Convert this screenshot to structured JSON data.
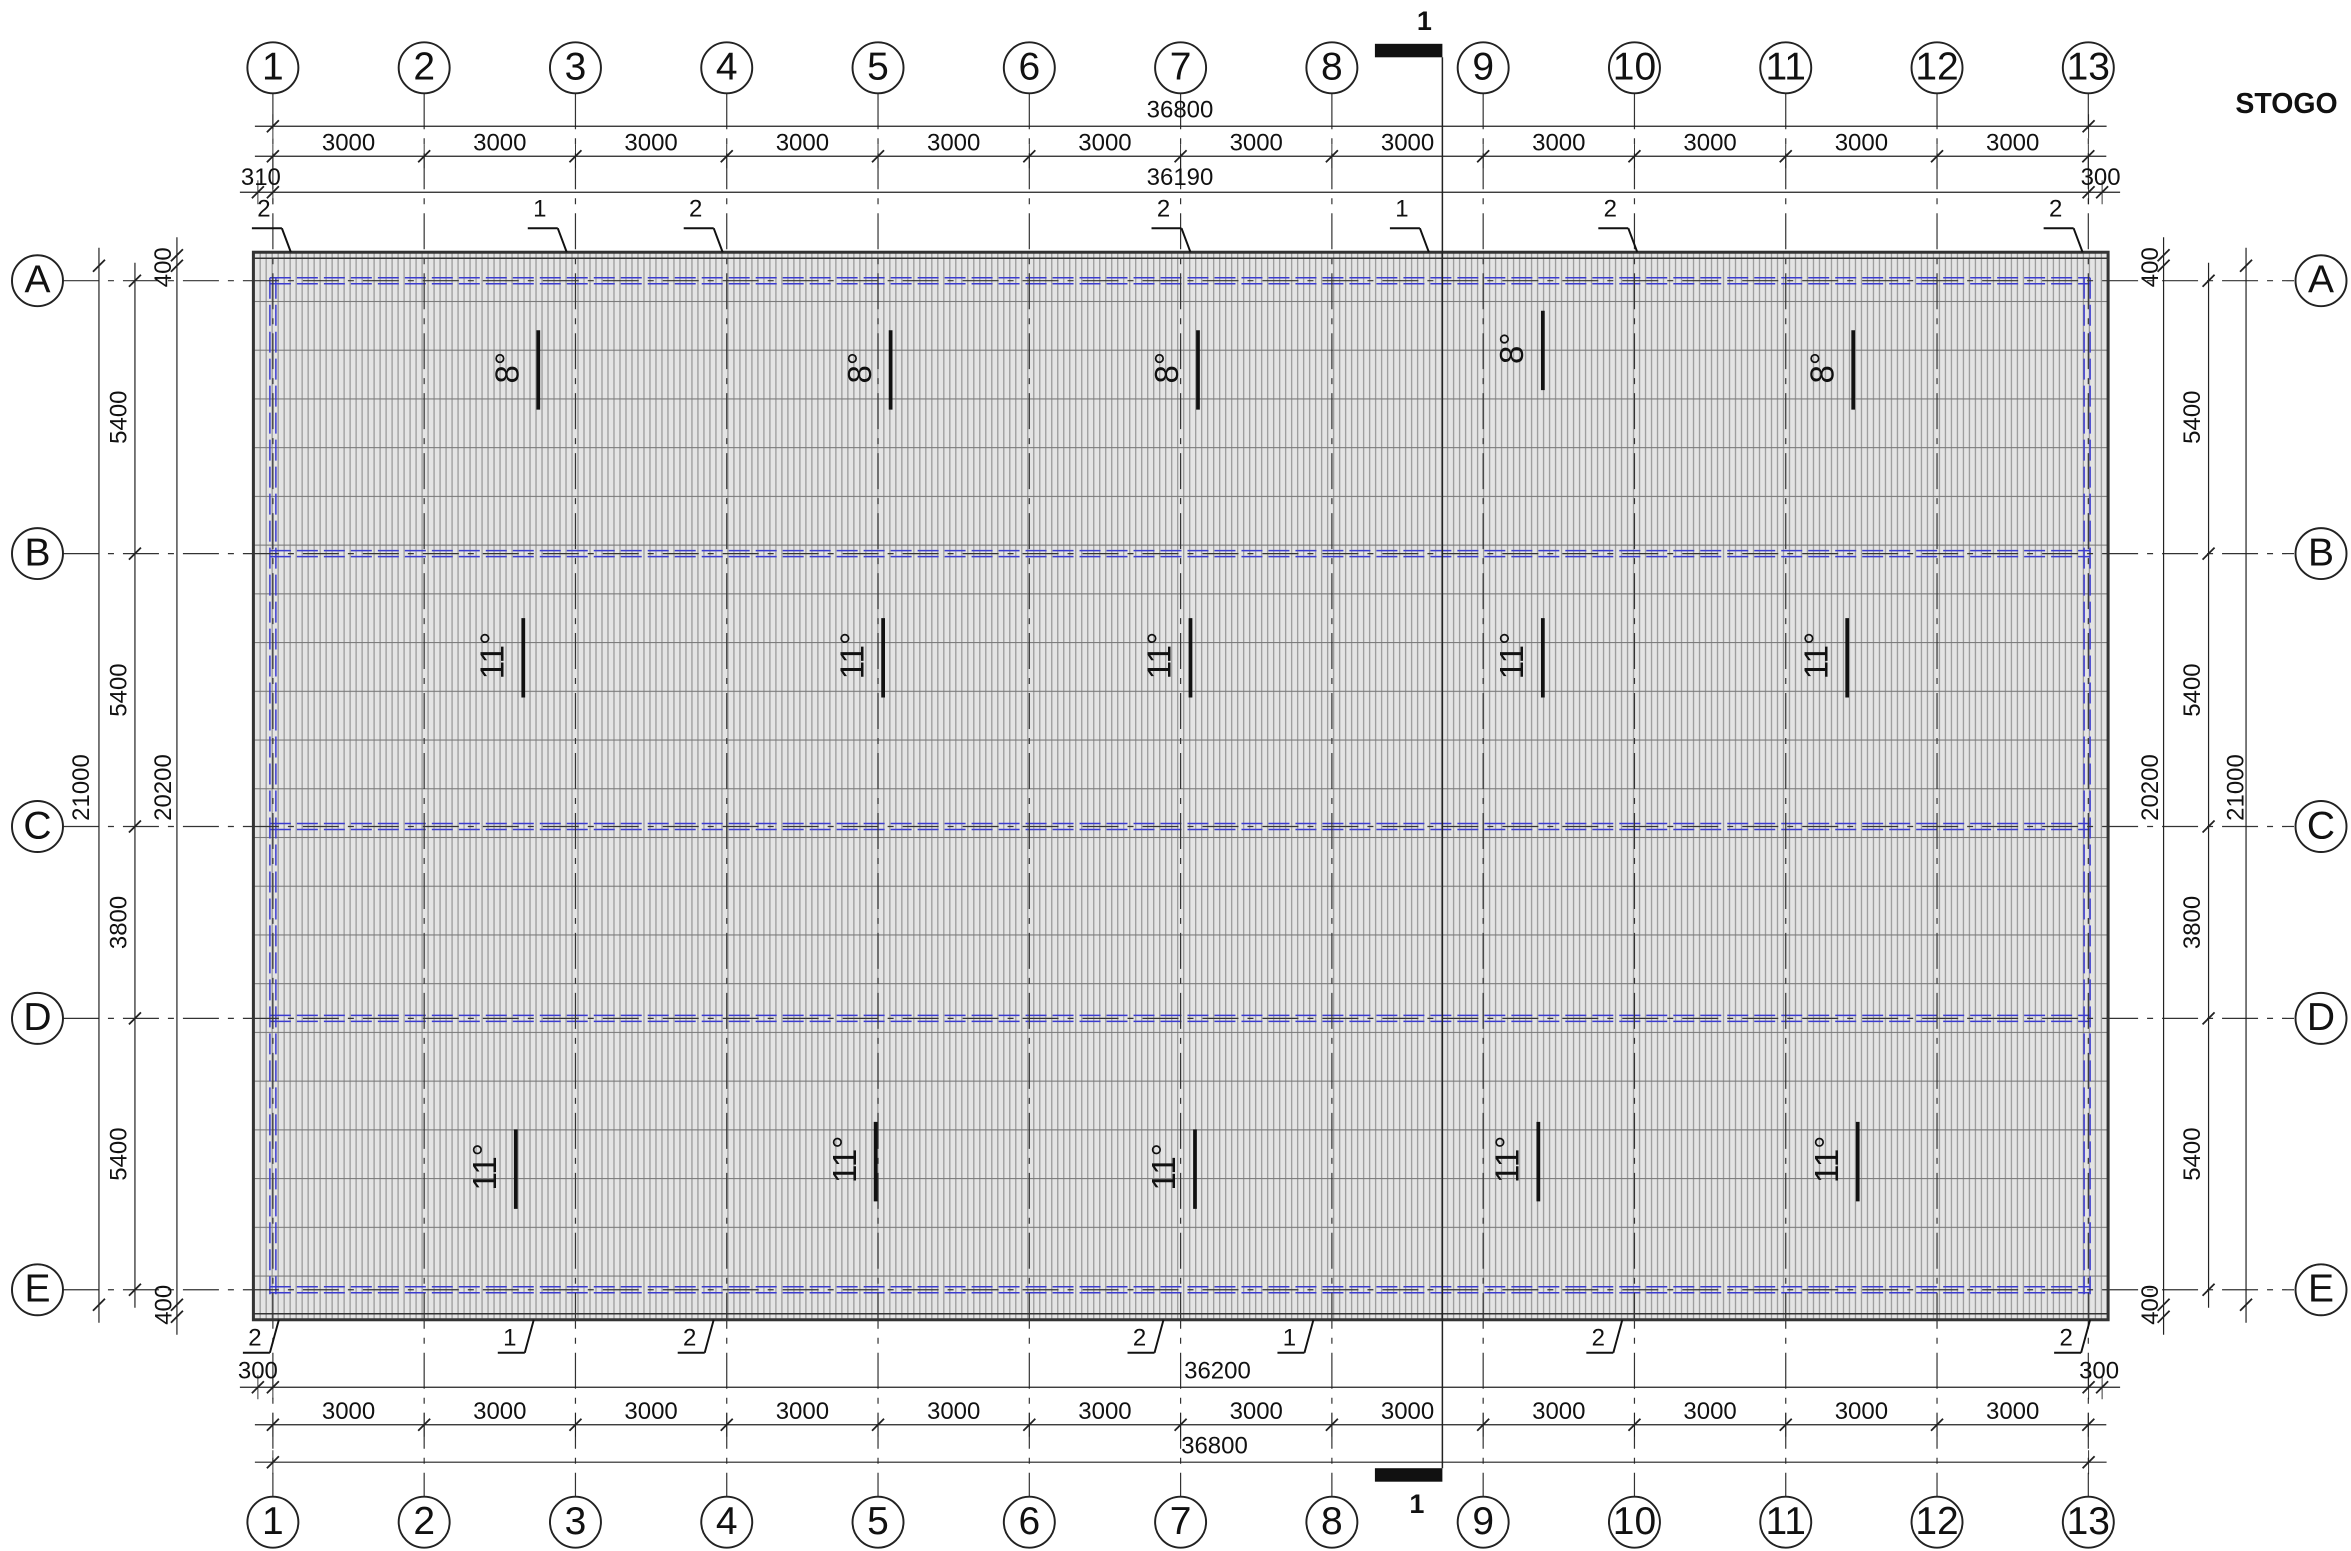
{
  "title": "STOGO",
  "grid_columns": [
    "1",
    "2",
    "3",
    "4",
    "5",
    "6",
    "7",
    "8",
    "9",
    "10",
    "11",
    "12",
    "13"
  ],
  "grid_rows": [
    "A",
    "B",
    "C",
    "D",
    "E"
  ],
  "section": {
    "label": "1"
  },
  "top_dims": {
    "overall": "36800",
    "spans": [
      "3000",
      "3000",
      "3000",
      "3000",
      "3000",
      "3000",
      "3000",
      "3000",
      "3000",
      "3000",
      "3000",
      "3000"
    ],
    "left": "310",
    "total": "36190",
    "right": "300"
  },
  "bottom_dims": {
    "left": "300",
    "total": "36200",
    "right": "300",
    "spans": [
      "3000",
      "3000",
      "3000",
      "3000",
      "3000",
      "3000",
      "3000",
      "3000",
      "3000",
      "3000",
      "3000",
      "3000"
    ],
    "overall": "36800"
  },
  "left_dims": {
    "overall": "21000",
    "inner": "20200",
    "edge_top": "400",
    "spans": [
      "5400",
      "5400",
      "3800",
      "5400"
    ],
    "edge_bottom": "400"
  },
  "right_dims": {
    "overall": "21000",
    "inner": "20200",
    "edge_top": "400",
    "spans": [
      "5400",
      "5400",
      "3800",
      "5400"
    ],
    "edge_bottom": "400"
  },
  "slopes": {
    "row_1": [
      "8°",
      "8°",
      "8°",
      "8°",
      "8°"
    ],
    "row_2": [
      "11°",
      "11°",
      "11°",
      "11°",
      "11°"
    ],
    "row_3": [
      "11°",
      "11°",
      "11°",
      "11°",
      "11°"
    ]
  },
  "gutter_marks": {
    "top": [
      "2",
      "1",
      "2",
      "2",
      "1",
      "2",
      "2"
    ],
    "bottom": [
      "2",
      "1",
      "2",
      "2",
      "1",
      "2",
      "2"
    ]
  }
}
